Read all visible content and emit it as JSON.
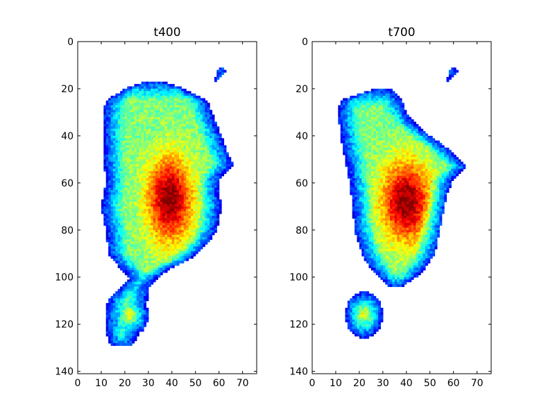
{
  "chart_data": [
    {
      "type": "heatmap",
      "title": "t400",
      "xlim": [
        0,
        76
      ],
      "ylim": [
        141,
        0
      ],
      "x_ticks": [
        "0",
        "10",
        "20",
        "30",
        "40",
        "50",
        "60",
        "70"
      ],
      "y_ticks": [
        "0",
        "20",
        "40",
        "60",
        "80",
        "100",
        "120",
        "140"
      ],
      "grid": false,
      "colormap": "jet",
      "island": {
        "main_left": [
          [
            17,
            28
          ],
          [
            20,
            20
          ],
          [
            25,
            12
          ],
          [
            30,
            11
          ],
          [
            40,
            11
          ],
          [
            50,
            11
          ],
          [
            60,
            12
          ],
          [
            70,
            10
          ],
          [
            80,
            12
          ],
          [
            90,
            13
          ],
          [
            95,
            17
          ],
          [
            100,
            22
          ],
          [
            104,
            19
          ],
          [
            108,
            14
          ],
          [
            112,
            12
          ],
          [
            118,
            12
          ],
          [
            124,
            12
          ],
          [
            129,
            14
          ]
        ],
        "main_right": [
          [
            17,
            36
          ],
          [
            20,
            45
          ],
          [
            25,
            55
          ],
          [
            30,
            57
          ],
          [
            40,
            61
          ],
          [
            48,
            64
          ],
          [
            52,
            66
          ],
          [
            58,
            60
          ],
          [
            65,
            60
          ],
          [
            70,
            61
          ],
          [
            80,
            59
          ],
          [
            86,
            55
          ],
          [
            92,
            48
          ],
          [
            96,
            40
          ],
          [
            100,
            34
          ],
          [
            104,
            30
          ],
          [
            108,
            30
          ],
          [
            112,
            29
          ],
          [
            118,
            27
          ],
          [
            124,
            26
          ],
          [
            129,
            23
          ]
        ],
        "core_center": [
          39,
          67
        ],
        "core_radius": [
          9,
          17
        ],
        "south_center": [
          22,
          116
        ],
        "south_radius": [
          8,
          9
        ],
        "small_islet": [
          [
            60,
            11
          ],
          [
            62,
            11
          ],
          [
            63,
            13
          ],
          [
            61,
            15
          ],
          [
            59,
            17
          ],
          [
            58,
            16
          ]
        ]
      }
    },
    {
      "type": "heatmap",
      "title": "t700",
      "xlim": [
        0,
        76
      ],
      "ylim": [
        141,
        0
      ],
      "x_ticks": [
        "0",
        "10",
        "20",
        "30",
        "40",
        "50",
        "60",
        "70"
      ],
      "y_ticks": [
        "0",
        "20",
        "40",
        "60",
        "80",
        "100",
        "120",
        "140"
      ],
      "grid": false,
      "colormap": "jet",
      "island": {
        "main_left": [
          [
            20,
            27
          ],
          [
            25,
            12
          ],
          [
            30,
            11
          ],
          [
            40,
            12
          ],
          [
            50,
            14
          ],
          [
            60,
            16
          ],
          [
            70,
            17
          ],
          [
            80,
            18
          ],
          [
            90,
            21
          ],
          [
            95,
            24
          ],
          [
            100,
            28
          ],
          [
            104,
            33
          ]
        ],
        "main_right": [
          [
            20,
            33
          ],
          [
            25,
            38
          ],
          [
            30,
            40
          ],
          [
            35,
            44
          ],
          [
            40,
            50
          ],
          [
            45,
            57
          ],
          [
            50,
            62
          ],
          [
            53,
            66
          ],
          [
            58,
            60
          ],
          [
            65,
            57
          ],
          [
            70,
            56
          ],
          [
            80,
            54
          ],
          [
            90,
            52
          ],
          [
            96,
            48
          ],
          [
            100,
            44
          ],
          [
            104,
            38
          ]
        ],
        "core_center": [
          40,
          68
        ],
        "core_radius": [
          10,
          16
        ],
        "south_center": [
          22,
          116
        ],
        "south_radius": [
          8,
          10
        ],
        "small_islet": [
          [
            59,
            11
          ],
          [
            61,
            11
          ],
          [
            62,
            13
          ],
          [
            60,
            15
          ],
          [
            58,
            17
          ],
          [
            57,
            16
          ]
        ]
      }
    }
  ]
}
